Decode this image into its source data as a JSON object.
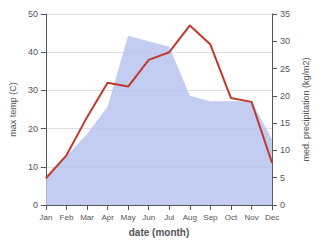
{
  "chart_data": {
    "type": "line",
    "categories": [
      "Jan",
      "Feb",
      "Mar",
      "Apr",
      "May",
      "Jun",
      "Jul",
      "Aug",
      "Sep",
      "Oct",
      "Nov",
      "Dec"
    ],
    "series": [
      {
        "type": "line",
        "color": "#c0392b",
        "values": [
          7,
          13,
          23,
          32,
          31,
          38,
          40,
          47,
          42,
          28,
          27,
          11
        ]
      },
      {
        "type": "area",
        "axis": "y2",
        "color": "#b8c4f0",
        "values": [
          5,
          9,
          13,
          18,
          31,
          30,
          29,
          20,
          19,
          19,
          19,
          12
        ]
      }
    ],
    "xlabel": "date (month)",
    "ylabel": "max temp (C)",
    "y2label": "med. precipitation (kg/m2)",
    "ylim": [
      0,
      50
    ],
    "yticks": [
      0,
      10,
      20,
      30,
      40,
      50
    ],
    "y2lim": [
      0,
      35
    ],
    "y2ticks": [
      0,
      5,
      10,
      15,
      20,
      25,
      30,
      35
    ],
    "grid": true
  }
}
